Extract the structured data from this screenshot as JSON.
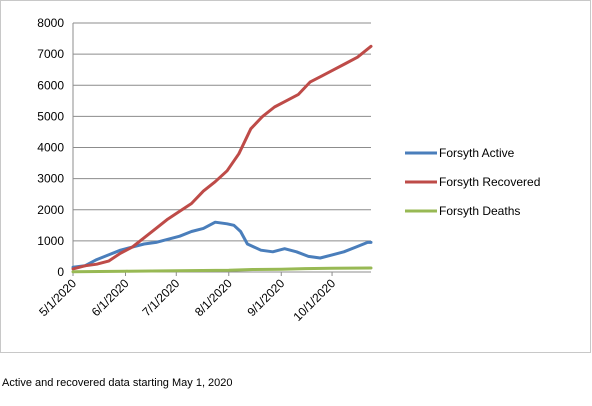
{
  "caption": "Active and recovered data starting May 1, 2020",
  "chart_data": {
    "type": "line",
    "title": "",
    "xlabel": "",
    "ylabel": "",
    "ylim": [
      0,
      8000
    ],
    "yticks": [
      0,
      1000,
      2000,
      3000,
      4000,
      5000,
      6000,
      7000,
      8000
    ],
    "grid": true,
    "legend_position": "right",
    "x_start": "2020-05-01",
    "x_end": "2020-10-24",
    "x_tick_labels": [
      "5/1/2020",
      "6/1/2020",
      "7/1/2020",
      "8/1/2020",
      "9/1/2020",
      "10/1/2020"
    ],
    "x_tick_dates": [
      "2020-05-01",
      "2020-06-01",
      "2020-07-01",
      "2020-08-01",
      "2020-09-01",
      "2020-10-01"
    ],
    "series": [
      {
        "name": "Forsyth Active",
        "color": "#4a7ebb",
        "points": [
          [
            "2020-05-01",
            150
          ],
          [
            "2020-05-08",
            200
          ],
          [
            "2020-05-15",
            400
          ],
          [
            "2020-05-22",
            550
          ],
          [
            "2020-05-29",
            700
          ],
          [
            "2020-06-05",
            800
          ],
          [
            "2020-06-12",
            900
          ],
          [
            "2020-06-19",
            950
          ],
          [
            "2020-06-26",
            1050
          ],
          [
            "2020-07-03",
            1150
          ],
          [
            "2020-07-10",
            1300
          ],
          [
            "2020-07-17",
            1400
          ],
          [
            "2020-07-24",
            1600
          ],
          [
            "2020-07-31",
            1550
          ],
          [
            "2020-08-04",
            1500
          ],
          [
            "2020-08-08",
            1300
          ],
          [
            "2020-08-12",
            900
          ],
          [
            "2020-08-16",
            800
          ],
          [
            "2020-08-20",
            700
          ],
          [
            "2020-08-27",
            650
          ],
          [
            "2020-09-03",
            750
          ],
          [
            "2020-09-10",
            650
          ],
          [
            "2020-09-17",
            500
          ],
          [
            "2020-09-24",
            450
          ],
          [
            "2020-10-01",
            550
          ],
          [
            "2020-10-08",
            650
          ],
          [
            "2020-10-15",
            800
          ],
          [
            "2020-10-22",
            950
          ],
          [
            "2020-10-24",
            950
          ]
        ]
      },
      {
        "name": "Forsyth Recovered",
        "color": "#be4b48",
        "points": [
          [
            "2020-05-01",
            100
          ],
          [
            "2020-05-08",
            200
          ],
          [
            "2020-05-15",
            250
          ],
          [
            "2020-05-22",
            350
          ],
          [
            "2020-05-29",
            600
          ],
          [
            "2020-06-05",
            800
          ],
          [
            "2020-06-12",
            1100
          ],
          [
            "2020-06-19",
            1400
          ],
          [
            "2020-06-26",
            1700
          ],
          [
            "2020-07-03",
            1950
          ],
          [
            "2020-07-10",
            2200
          ],
          [
            "2020-07-17",
            2600
          ],
          [
            "2020-07-24",
            2900
          ],
          [
            "2020-07-31",
            3250
          ],
          [
            "2020-08-07",
            3800
          ],
          [
            "2020-08-14",
            4600
          ],
          [
            "2020-08-21",
            5000
          ],
          [
            "2020-08-28",
            5300
          ],
          [
            "2020-09-04",
            5500
          ],
          [
            "2020-09-11",
            5700
          ],
          [
            "2020-09-18",
            6100
          ],
          [
            "2020-09-25",
            6300
          ],
          [
            "2020-10-02",
            6500
          ],
          [
            "2020-10-09",
            6700
          ],
          [
            "2020-10-16",
            6900
          ],
          [
            "2020-10-24",
            7250
          ]
        ]
      },
      {
        "name": "Forsyth Deaths",
        "color": "#98b954",
        "points": [
          [
            "2020-05-01",
            10
          ],
          [
            "2020-06-01",
            25
          ],
          [
            "2020-07-01",
            40
          ],
          [
            "2020-08-01",
            55
          ],
          [
            "2020-08-15",
            80
          ],
          [
            "2020-09-01",
            90
          ],
          [
            "2020-09-15",
            110
          ],
          [
            "2020-10-01",
            120
          ],
          [
            "2020-10-24",
            130
          ]
        ]
      }
    ]
  }
}
